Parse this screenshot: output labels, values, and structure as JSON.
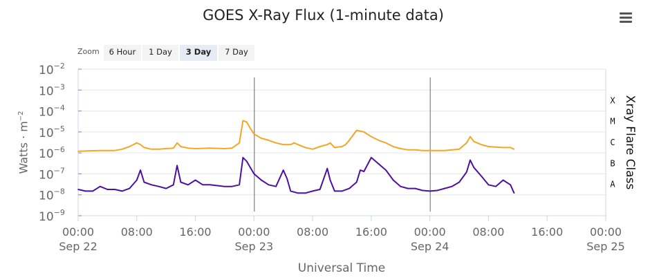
{
  "title": "GOES X-Ray Flux (1-minute data)",
  "menu_icon": "hamburger-menu-icon",
  "zoom": {
    "label": "Zoom",
    "buttons": [
      "6 Hour",
      "1 Day",
      "3 Day",
      "7 Day"
    ],
    "active": "3 Day"
  },
  "colors": {
    "long_channel": "#f5a623",
    "long_channel_gap": "#d62728",
    "short_channel": "#4b0fa3",
    "short_channel_alt": "#1f4bd6",
    "grid": "#e6e6e6",
    "axis_text": "#666666"
  },
  "chart_data": {
    "type": "line",
    "title": "GOES X-Ray Flux (1-minute data)",
    "xlabel": "Universal Time",
    "ylabel": "Watts · m",
    "ylabel_exponent": "−2",
    "y_scale": "log",
    "ylim": [
      1e-09,
      0.01
    ],
    "y_ticks": [
      {
        "base": "10",
        "exp": "−2",
        "value": 0.01
      },
      {
        "base": "10",
        "exp": "−3",
        "value": 0.001
      },
      {
        "base": "10",
        "exp": "−4",
        "value": 0.0001
      },
      {
        "base": "10",
        "exp": "−5",
        "value": 1e-05
      },
      {
        "base": "10",
        "exp": "−6",
        "value": 1e-06
      },
      {
        "base": "10",
        "exp": "−7",
        "value": 1e-07
      },
      {
        "base": "10",
        "exp": "−8",
        "value": 1e-08
      },
      {
        "base": "10",
        "exp": "−9",
        "value": 1e-09
      }
    ],
    "xlim": [
      "Sep 22 00:00",
      "Sep 25 00:00"
    ],
    "x_ticks": [
      {
        "time": "00:00",
        "date": "Sep 22",
        "hour": 0
      },
      {
        "time": "08:00",
        "date": "",
        "hour": 8
      },
      {
        "time": "16:00",
        "date": "",
        "hour": 16
      },
      {
        "time": "00:00",
        "date": "Sep 23",
        "hour": 24
      },
      {
        "time": "08:00",
        "date": "",
        "hour": 32
      },
      {
        "time": "16:00",
        "date": "",
        "hour": 40
      },
      {
        "time": "00:00",
        "date": "Sep 24",
        "hour": 48
      },
      {
        "time": "08:00",
        "date": "",
        "hour": 56
      },
      {
        "time": "16:00",
        "date": "",
        "hour": 64
      },
      {
        "time": "00:00",
        "date": "Sep 25",
        "hour": 72
      }
    ],
    "day_markers": [
      "Sep 23 00:00",
      "Sep 24 00:00"
    ],
    "right_axis": {
      "label": "Xray Flare Class",
      "classes": [
        {
          "name": "X",
          "min": 0.0001
        },
        {
          "name": "M",
          "min": 1e-05
        },
        {
          "name": "C",
          "min": 1e-06
        },
        {
          "name": "B",
          "min": 1e-07
        },
        {
          "name": "A",
          "min": 1e-08
        }
      ]
    },
    "grid": true,
    "legend": "none",
    "series": [
      {
        "key": "long",
        "x_hours": [
          0,
          3,
          5,
          6,
          7,
          8,
          8.5,
          9,
          10,
          11,
          12,
          13,
          13.5,
          14,
          15,
          16,
          18,
          20,
          21,
          22,
          22.5,
          23,
          23.5,
          24,
          25,
          26,
          27,
          28,
          29,
          29.5,
          30,
          31,
          32,
          33,
          34,
          34.4,
          35,
          36,
          36.5,
          37,
          38,
          39,
          40,
          41,
          42,
          43,
          44,
          45,
          46,
          47,
          48,
          49,
          50,
          51,
          52,
          53,
          53.5,
          54,
          55,
          56,
          57,
          58,
          59,
          59.5
        ],
        "values": [
          1.2e-06,
          1.3e-06,
          1.3e-06,
          1.5e-06,
          2e-06,
          3e-06,
          2.5e-06,
          1.8e-06,
          1.5e-06,
          1.5e-06,
          1.6e-06,
          1.7e-06,
          3e-06,
          2e-06,
          1.7e-06,
          1.6e-06,
          1.7e-06,
          1.6e-06,
          1.7e-06,
          3e-06,
          3.5e-05,
          3e-05,
          1.5e-05,
          8e-06,
          5e-06,
          4e-06,
          3e-06,
          2.5e-06,
          2.5e-06,
          3e-06,
          2.5e-06,
          1.8e-06,
          1.5e-06,
          2e-06,
          2.5e-06,
          3e-06,
          1.8e-06,
          2e-06,
          2.5e-06,
          4e-06,
          1.2e-05,
          1e-05,
          6e-06,
          4e-06,
          3e-06,
          2e-06,
          1.6e-06,
          1.4e-06,
          1.4e-06,
          1.3e-06,
          1.3e-06,
          1.3e-06,
          1.3e-06,
          1.4e-06,
          1.5e-06,
          3e-06,
          6e-06,
          3.5e-06,
          2.5e-06,
          2e-06,
          1.9e-06,
          1.8e-06,
          1.8e-06,
          1.5e-06
        ]
      },
      {
        "key": "short",
        "x_hours": [
          0,
          1,
          2,
          3,
          4,
          5,
          6,
          7,
          8,
          8.5,
          9,
          10,
          11,
          12,
          13,
          13.5,
          14,
          15,
          16,
          17,
          18,
          20,
          21,
          22,
          22.5,
          23,
          24,
          25,
          26,
          27,
          28,
          28.5,
          29,
          30,
          31,
          32,
          33,
          34,
          34.4,
          35,
          36,
          37,
          38,
          38.5,
          39,
          40,
          41,
          42,
          43,
          44,
          45,
          46,
          47,
          48,
          49,
          50,
          51,
          52,
          53,
          53.5,
          54,
          55,
          56,
          57,
          58,
          59,
          59.5
        ],
        "values": [
          1.8e-08,
          1.5e-08,
          1.5e-08,
          2.5e-08,
          1.8e-08,
          1.8e-08,
          1.5e-08,
          2e-08,
          5e-08,
          1.5e-07,
          4e-08,
          3e-08,
          2.5e-08,
          2e-08,
          3e-08,
          2.5e-07,
          4e-08,
          3e-08,
          5e-08,
          3e-08,
          3e-08,
          2.5e-08,
          2.5e-08,
          3e-08,
          6e-07,
          4e-07,
          1e-07,
          5e-08,
          3e-08,
          2.5e-08,
          1.5e-07,
          6e-08,
          1.5e-08,
          1.2e-08,
          1.2e-08,
          1.5e-08,
          1.8e-08,
          1.8e-07,
          5e-08,
          1.5e-08,
          1.5e-08,
          2e-08,
          4e-08,
          1.5e-07,
          1.3e-07,
          6e-07,
          3e-07,
          1.5e-07,
          5e-08,
          2.5e-08,
          2e-08,
          2e-08,
          1.6e-08,
          1.5e-08,
          1.6e-08,
          2e-08,
          2.5e-08,
          4e-08,
          1.2e-07,
          4.5e-07,
          2e-07,
          8e-08,
          3e-08,
          2.5e-08,
          5e-08,
          3e-08,
          1.2e-08
        ]
      }
    ]
  }
}
